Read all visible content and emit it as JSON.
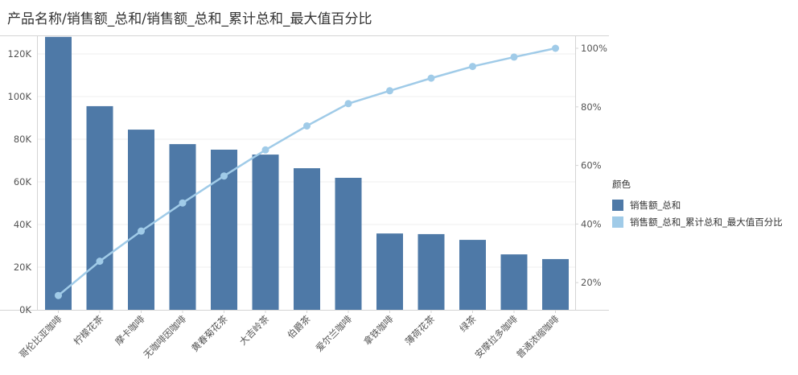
{
  "title": "产品名称/销售额_总和/销售额_总和_累计总和_最大值百分比",
  "legend": {
    "title": "颜色",
    "items": [
      {
        "label": "销售额_总和",
        "color": "#4e79a7"
      },
      {
        "label": "销售额_总和_累计总和_最大值百分比",
        "color": "#a0cbe8"
      }
    ]
  },
  "chart_data": {
    "type": "bar+line (pareto)",
    "title": "产品名称/销售额_总和/销售额_总和_累计总和_最大值百分比",
    "categories": [
      "哥伦比亚咖啡",
      "柠檬花茶",
      "摩卡咖啡",
      "无咖啡因咖啡",
      "黄春菊花茶",
      "大吉岭茶",
      "伯爵茶",
      "爱尔兰咖啡",
      "拿铁咖啡",
      "薄荷花茶",
      "绿茶",
      "安摩拉多咖啡",
      "普通浓缩咖啡"
    ],
    "series": [
      {
        "name": "销售额_总和",
        "type": "bar",
        "axis": "left",
        "color": "#4e79a7",
        "values": [
          128000,
          95500,
          84500,
          77700,
          75100,
          72800,
          66400,
          61900,
          35800,
          35500,
          32800,
          26000,
          23800
        ]
      },
      {
        "name": "销售额_总和_累计总和_最大值百分比",
        "type": "line",
        "axis": "right",
        "color": "#a0cbe8",
        "values": [
          15.6,
          27.3,
          37.6,
          47.2,
          56.4,
          65.3,
          73.5,
          81.1,
          85.5,
          89.8,
          93.8,
          97.0,
          100.0
        ]
      }
    ],
    "left_axis": {
      "ticks": [
        "0K",
        "20K",
        "40K",
        "60K",
        "80K",
        "100K",
        "120K"
      ],
      "tick_values": [
        0,
        20000,
        40000,
        60000,
        80000,
        100000,
        120000
      ],
      "ylim": [
        0,
        128000
      ]
    },
    "right_axis": {
      "ticks": [
        "20%",
        "40%",
        "60%",
        "80%",
        "100%"
      ],
      "tick_values": [
        20,
        40,
        60,
        80,
        100
      ]
    },
    "xlabel": "",
    "ylabel": "",
    "grid": true,
    "legend_position": "right"
  }
}
